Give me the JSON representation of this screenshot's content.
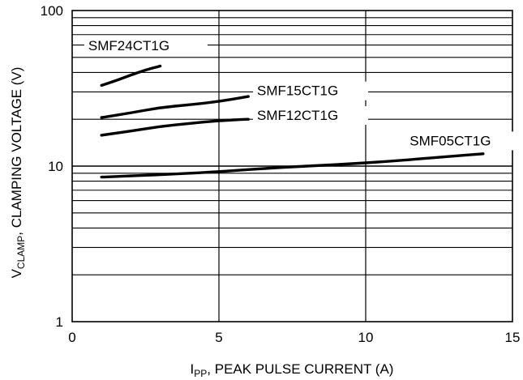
{
  "chart_data": {
    "type": "line",
    "title": "",
    "x_axis": {
      "label_main": "I",
      "label_sub": "PP",
      "label_rest": ", PEAK PULSE CURRENT (A)",
      "range": [
        0,
        15
      ],
      "ticks": [
        0,
        5,
        10,
        15
      ],
      "tick_labels": [
        "0",
        "5",
        "10",
        "15"
      ],
      "scale": "linear"
    },
    "y_axis": {
      "label_main": "V",
      "label_sub": "CLAMP",
      "label_rest": ", CLAMPING VOLTAGE (V)",
      "range": [
        1,
        100
      ],
      "ticks": [
        1,
        10,
        100
      ],
      "tick_labels": [
        "1",
        "10",
        "100"
      ],
      "scale": "log"
    },
    "grid": true,
    "series": [
      {
        "name": "SMF24CT1G",
        "x": [
          1,
          1.5,
          2,
          2.5,
          3
        ],
        "y": [
          33,
          35.5,
          38.5,
          41.5,
          44
        ]
      },
      {
        "name": "SMF15CT1G",
        "x": [
          1,
          2,
          3,
          4,
          5,
          6
        ],
        "y": [
          20.5,
          22,
          23.8,
          24.8,
          26,
          28
        ]
      },
      {
        "name": "SMF12CT1G",
        "x": [
          1,
          2,
          3,
          4,
          5,
          6
        ],
        "y": [
          15.8,
          16.8,
          18,
          18.8,
          19.6,
          20
        ]
      },
      {
        "name": "SMF05CT1G",
        "x": [
          1,
          3,
          5,
          7,
          9,
          11,
          13,
          14
        ],
        "y": [
          8.5,
          8.8,
          9.2,
          9.8,
          10.2,
          10.8,
          11.6,
          12
        ]
      }
    ]
  }
}
